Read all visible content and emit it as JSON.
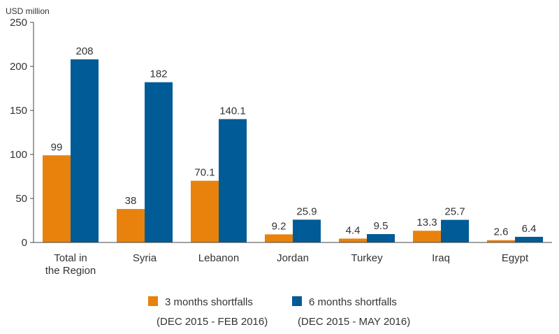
{
  "chart_data": {
    "type": "bar",
    "ylabel": "USD million",
    "ylim": [
      0,
      250
    ],
    "yticks": [
      0,
      50,
      100,
      150,
      200,
      250
    ],
    "categories": [
      [
        "Total in",
        "the Region"
      ],
      [
        "Syria"
      ],
      [
        "Lebanon"
      ],
      [
        "Jordan"
      ],
      [
        "Turkey"
      ],
      [
        "Iraq"
      ],
      [
        "Egypt"
      ]
    ],
    "series": [
      {
        "name": "3 months shortfalls",
        "period": "(DEC 2015 - FEB 2016)",
        "color": "#e8820c",
        "values": [
          99,
          38,
          70.1,
          9.2,
          4.4,
          13.3,
          2.6
        ],
        "labels": [
          "99",
          "38",
          "70.1",
          "9.2",
          "4.4",
          "13.3",
          "2.6"
        ]
      },
      {
        "name": "6 months shortfalls",
        "period": "(DEC 2015 - MAY 2016)",
        "color": "#005b96",
        "values": [
          208,
          182,
          140.1,
          25.9,
          9.5,
          25.7,
          6.4
        ],
        "labels": [
          "208",
          "182",
          "140.1",
          "25.9",
          "9.5",
          "25.7",
          "6.4"
        ]
      }
    ],
    "grid": false,
    "legend": "bottom"
  }
}
